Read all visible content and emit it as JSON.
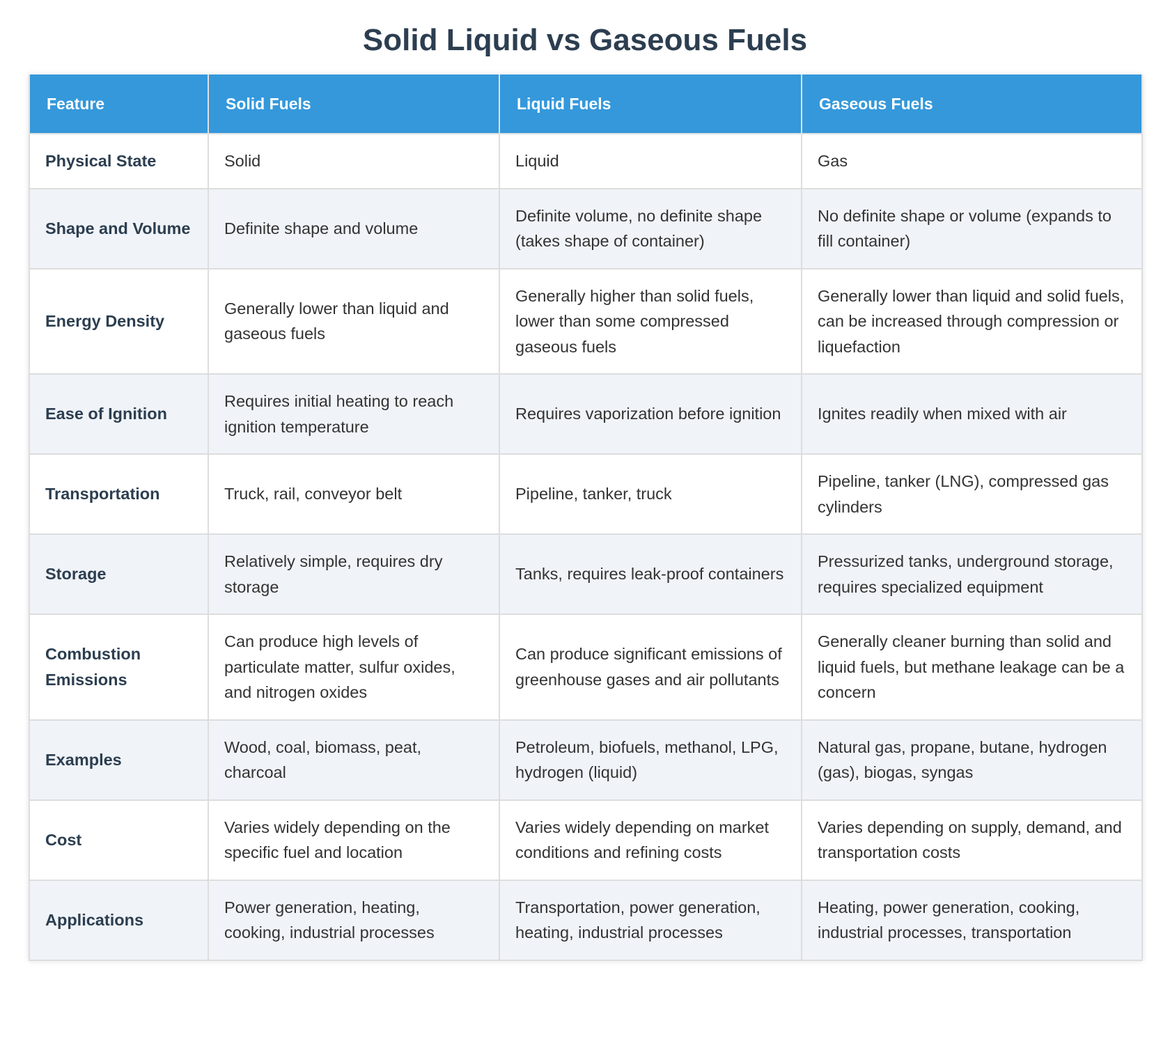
{
  "header": {
    "title": "Solid Liquid vs Gaseous Fuels"
  },
  "table": {
    "columns": [
      "Feature",
      "Solid Fuels",
      "Liquid Fuels",
      "Gaseous Fuels"
    ],
    "rows": [
      [
        "Physical State",
        "Solid",
        "Liquid",
        "Gas"
      ],
      [
        "Shape and Volume",
        "Definite shape and volume",
        "Definite volume, no definite shape (takes shape of container)",
        "No definite shape or volume (expands to fill container)"
      ],
      [
        "Energy Density",
        "Generally lower than liquid and gaseous fuels",
        "Generally higher than solid fuels, lower than some compressed gaseous fuels",
        "Generally lower than liquid and solid fuels, can be increased through compression or liquefaction"
      ],
      [
        "Ease of Ignition",
        "Requires initial heating to reach ignition temperature",
        "Requires vaporization before ignition",
        "Ignites readily when mixed with air"
      ],
      [
        "Transportation",
        "Truck, rail, conveyor belt",
        "Pipeline, tanker, truck",
        "Pipeline, tanker (LNG), compressed gas cylinders"
      ],
      [
        "Storage",
        "Relatively simple, requires dry storage",
        "Tanks, requires leak-proof containers",
        "Pressurized tanks, underground storage, requires specialized equipment"
      ],
      [
        "Combustion Emissions",
        "Can produce high levels of particulate matter, sulfur oxides, and nitrogen oxides",
        "Can produce significant emissions of greenhouse gases and air pollutants",
        "Generally cleaner burning than solid and liquid fuels, but methane leakage can be a concern"
      ],
      [
        "Examples",
        "Wood, coal, biomass, peat, charcoal",
        "Petroleum, biofuels, methanol, LPG, hydrogen (liquid)",
        "Natural gas, propane, butane, hydrogen (gas), biogas, syngas"
      ],
      [
        "Cost",
        "Varies widely depending on the specific fuel and location",
        "Varies widely depending on market conditions and refining costs",
        "Varies depending on supply, demand, and transportation costs"
      ],
      [
        "Applications",
        "Power generation, heating, cooking, industrial processes",
        "Transportation, power generation, heating, industrial processes",
        "Heating, power generation, cooking, industrial processes, transportation"
      ]
    ]
  }
}
